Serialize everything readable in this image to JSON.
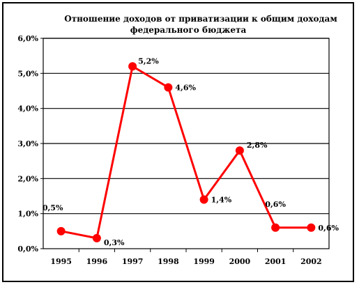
{
  "chart_data": {
    "type": "line",
    "title_lines": [
      "Отношение доходов от приватизации к общим доходам",
      "федерального бюджета"
    ],
    "categories": [
      "1995",
      "1996",
      "1997",
      "1998",
      "1999",
      "2000",
      "2001",
      "2002"
    ],
    "values": [
      0.5,
      0.3,
      5.2,
      4.6,
      1.4,
      2.8,
      0.6,
      0.6
    ],
    "data_labels": [
      "0,5%",
      "0,3%",
      "5,2%",
      "4,6%",
      "1,4%",
      "2,8%",
      "0,6%",
      "0,6%"
    ],
    "y_ticks": [
      "0,0%",
      "1,0%",
      "2,0%",
      "3,0%",
      "4,0%",
      "5,0%",
      "6,0%"
    ],
    "ylim": [
      0,
      6
    ],
    "xlabel": "",
    "ylabel": "",
    "grid": true,
    "legend": "none",
    "line_color": "#ff0000",
    "marker_color": "#ff0000"
  }
}
